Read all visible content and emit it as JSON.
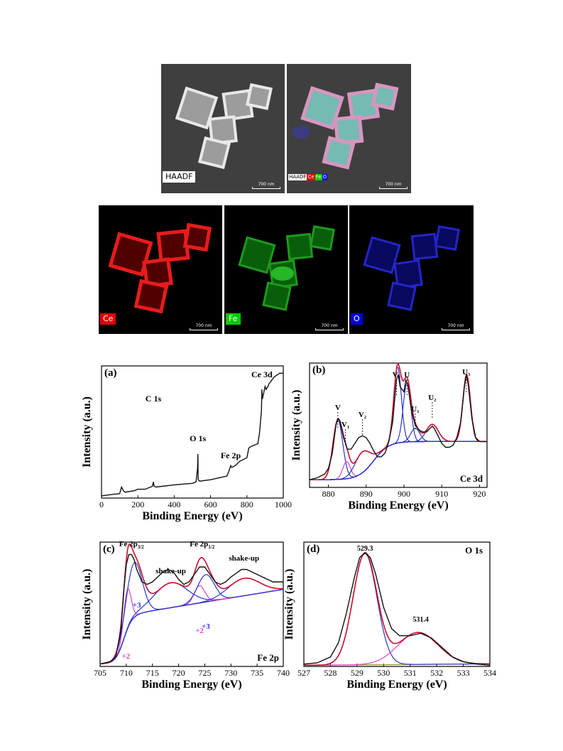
{
  "micrographs": {
    "haadf": {
      "label": "HAADF",
      "scale": "700 nm"
    },
    "overlay": {
      "labels": [
        "HAADF",
        "Ce",
        "Fe",
        "O"
      ],
      "scale": "700 nm"
    },
    "ce_map": {
      "label": "Ce",
      "scale": "700 nm"
    },
    "fe_map": {
      "label": "Fe",
      "scale": "700 nm"
    },
    "o_map": {
      "label": "O",
      "scale": "700 nm"
    }
  },
  "colors": {
    "ce": "#e00000",
    "fe": "#00cc00",
    "o": "#0000dd",
    "fit_blue": "#2a35c8",
    "fit_magenta": "#e040c8",
    "fit_red": "#c8102e"
  },
  "chart_data": [
    {
      "type": "line",
      "panel": "(a)",
      "xlabel": "Binding Energy (eV)",
      "ylabel": "Intensity (a.u.)",
      "xlim": [
        0,
        1000
      ],
      "xticks": [
        0,
        200,
        400,
        600,
        800,
        1000
      ],
      "annotations": [
        {
          "text": "C 1s",
          "x": 285
        },
        {
          "text": "O 1s",
          "x": 530
        },
        {
          "text": "Fe 2p",
          "x": 711
        },
        {
          "text": "Ce 3d",
          "x": 882
        }
      ],
      "series": [
        {
          "x": [
            0,
            60,
            100,
            110,
            120,
            130,
            180,
            200,
            240,
            260,
            280,
            285,
            290,
            300,
            400,
            500,
            520,
            528,
            530,
            532,
            540,
            600,
            690,
            700,
            705,
            711,
            715,
            720,
            740,
            760,
            800,
            810,
            820,
            840,
            860,
            870,
            880,
            882,
            885,
            890,
            898,
            900,
            905,
            910,
            916,
            920,
            950,
            980,
            1000
          ],
          "y": [
            3,
            5,
            6,
            15,
            10,
            8,
            10,
            12,
            12,
            14,
            16,
            22,
            16,
            15,
            18,
            20,
            22,
            40,
            60,
            25,
            23,
            25,
            30,
            36,
            40,
            44,
            42,
            42,
            45,
            50,
            55,
            68,
            70,
            72,
            74,
            90,
            120,
            148,
            135,
            140,
            150,
            152,
            148,
            150,
            152,
            155,
            165,
            170,
            170
          ]
        }
      ]
    },
    {
      "type": "line",
      "panel": "(b)",
      "title": "Ce 3d",
      "xlabel": "Binding Energy (eV)",
      "ylabel": "Intensity (a.u.)",
      "xlim": [
        875,
        922
      ],
      "xticks": [
        880,
        890,
        900,
        910,
        920
      ],
      "annotations": [
        {
          "text": "V",
          "x": 882.5
        },
        {
          "text": "V₁",
          "x": 884.5
        },
        {
          "text": "V₂",
          "x": 889
        },
        {
          "text": "V₃",
          "x": 898
        },
        {
          "text": "U",
          "x": 900.8
        },
        {
          "text": "U₁",
          "x": 903
        },
        {
          "text": "U₂",
          "x": 907.5
        },
        {
          "text": "U₃",
          "x": 916.5
        }
      ],
      "series": [
        {
          "x": [
            875,
            877,
            879,
            880,
            881,
            882,
            882.5,
            883,
            884,
            885,
            886,
            887,
            888,
            889,
            890,
            891,
            892,
            893,
            894,
            895,
            896,
            897,
            898,
            898.5,
            899,
            900,
            900.5,
            901,
            902,
            903,
            904,
            905,
            906,
            907,
            907.5,
            908,
            909,
            910,
            911,
            912,
            913,
            914,
            915,
            916,
            916.5,
            917,
            918,
            919,
            920,
            921,
            922
          ],
          "y": [
            8,
            10,
            14,
            20,
            35,
            65,
            72,
            70,
            52,
            40,
            40,
            46,
            52,
            54,
            52,
            46,
            38,
            32,
            32,
            36,
            48,
            68,
            112,
            118,
            105,
            100,
            112,
            108,
            80,
            65,
            60,
            58,
            58,
            62,
            64,
            62,
            54,
            46,
            42,
            42,
            44,
            52,
            68,
            105,
            118,
            108,
            72,
            52,
            48,
            48,
            48
          ]
        }
      ]
    },
    {
      "type": "line",
      "panel": "(c)",
      "title": "Fe 2p",
      "xlabel": "Binding Energy (eV)",
      "ylabel": "Intensity (a.u.)",
      "xlim": [
        705,
        740
      ],
      "xticks": [
        705,
        710,
        715,
        720,
        725,
        730,
        735,
        740
      ],
      "annotations": [
        {
          "text": "Fe 2p",
          "sub": "3/2",
          "x": 711
        },
        {
          "text": "shake-up",
          "x": 718.5
        },
        {
          "text": "Fe 2p",
          "sub": "1/2",
          "x": 724.5
        },
        {
          "text": "shake-up",
          "x": 732.5
        },
        {
          "text": "+3",
          "x": 711.2
        },
        {
          "text": "+2",
          "x": 710.2
        },
        {
          "text": "+3",
          "x": 725.2
        },
        {
          "text": "+2",
          "x": 724
        }
      ],
      "series": [
        {
          "x": [
            705,
            707,
            708,
            709,
            709.5,
            710,
            710.5,
            711,
            711.5,
            712,
            713,
            714,
            715,
            716,
            717,
            718,
            719,
            720,
            721,
            722,
            723,
            724,
            725,
            726,
            727,
            728,
            729,
            730,
            731,
            732,
            733,
            734,
            735,
            736,
            737,
            738,
            739,
            740
          ],
          "y": [
            2,
            4,
            8,
            30,
            60,
            82,
            90,
            90,
            86,
            78,
            68,
            66,
            68,
            72,
            76,
            78,
            76,
            70,
            66,
            68,
            74,
            80,
            80,
            74,
            68,
            66,
            68,
            72,
            75,
            78,
            78,
            76,
            74,
            72,
            70,
            68,
            68,
            68
          ]
        }
      ]
    },
    {
      "type": "line",
      "panel": "(d)",
      "title": "O 1s",
      "xlabel": "Binding Energy (eV)",
      "ylabel": "Intensity (a.u.)",
      "xlim": [
        527,
        534
      ],
      "xticks": [
        527,
        528,
        529,
        530,
        531,
        532,
        533,
        534
      ],
      "annotations": [
        {
          "text": "529.3",
          "x": 529.3
        },
        {
          "text": "531.4",
          "x": 531.4
        }
      ],
      "series": [
        {
          "x": [
            527,
            527.5,
            528,
            528.3,
            528.6,
            528.9,
            529.1,
            529.3,
            529.5,
            529.7,
            530,
            530.3,
            530.6,
            531,
            531.4,
            531.8,
            532.2,
            532.6,
            533,
            533.5,
            534
          ],
          "y": [
            2,
            3,
            8,
            20,
            45,
            75,
            92,
            96,
            92,
            78,
            50,
            32,
            26,
            26,
            28,
            24,
            16,
            8,
            4,
            2,
            1
          ]
        }
      ]
    }
  ]
}
